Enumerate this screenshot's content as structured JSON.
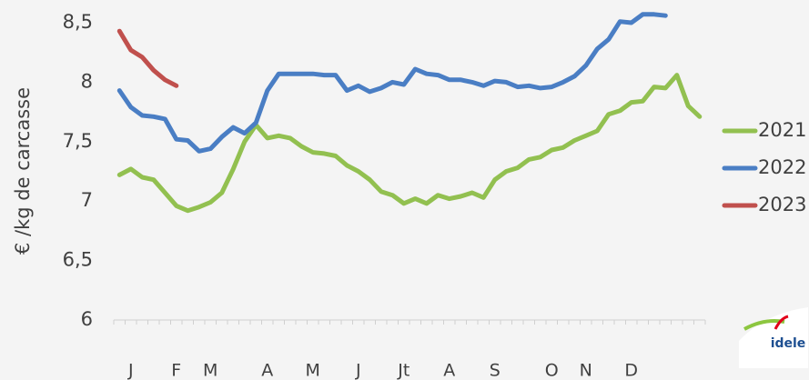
{
  "chart_data": {
    "type": "line",
    "y_label": "€ /kg de carcasse",
    "categories": [
      null,
      "J",
      null,
      null,
      null,
      "F",
      null,
      null,
      "M",
      null,
      null,
      null,
      null,
      "A",
      null,
      null,
      null,
      "M",
      null,
      null,
      null,
      "J",
      null,
      null,
      null,
      "Jt",
      null,
      null,
      null,
      "A",
      null,
      null,
      null,
      "S",
      null,
      null,
      null,
      null,
      "O",
      null,
      null,
      "N",
      null,
      null,
      null,
      "D",
      null,
      null,
      null,
      null,
      null,
      null
    ],
    "series": [
      {
        "name": "2021",
        "color": "#92c050",
        "values": [
          7.22,
          7.27,
          7.2,
          7.18,
          7.07,
          6.96,
          6.92,
          6.95,
          6.99,
          7.07,
          7.27,
          7.5,
          7.64,
          7.53,
          7.55,
          7.53,
          7.46,
          7.41,
          7.4,
          7.38,
          7.3,
          7.25,
          7.18,
          7.08,
          7.05,
          6.98,
          7.02,
          6.98,
          7.05,
          7.02,
          7.04,
          7.07,
          7.03,
          7.18,
          7.25,
          7.28,
          7.35,
          7.37,
          7.43,
          7.45,
          7.51,
          7.55,
          7.59,
          7.73,
          7.76,
          7.83,
          7.84,
          7.96,
          7.95,
          8.06,
          7.8,
          7.71
        ]
      },
      {
        "name": "2022",
        "color": "#4a7ec4",
        "values": [
          7.93,
          7.79,
          7.72,
          7.71,
          7.69,
          7.52,
          7.51,
          7.42,
          7.44,
          7.54,
          7.62,
          7.57,
          7.66,
          7.93,
          8.07,
          8.07,
          8.07,
          8.07,
          8.06,
          8.06,
          7.93,
          7.97,
          7.92,
          7.95,
          8.0,
          7.98,
          8.11,
          8.07,
          8.06,
          8.02,
          8.02,
          8.0,
          7.97,
          8.01,
          8.0,
          7.96,
          7.97,
          7.95,
          7.96,
          8.0,
          8.05,
          8.14,
          8.28,
          8.36,
          8.51,
          8.5,
          8.57,
          8.57,
          8.56,
          null,
          null,
          null
        ]
      },
      {
        "name": "2023",
        "color": "#c0504d",
        "values": [
          8.43,
          8.27,
          8.21,
          8.1,
          8.02,
          7.97,
          null,
          null,
          null,
          null,
          null,
          null,
          null,
          null,
          null,
          null,
          null,
          null,
          null,
          null,
          null,
          null,
          null,
          null,
          null,
          null,
          null,
          null,
          null,
          null,
          null,
          null,
          null,
          null,
          null,
          null,
          null,
          null,
          null,
          null,
          null,
          null,
          null,
          null,
          null,
          null,
          null,
          null,
          null,
          null,
          null,
          null
        ]
      }
    ],
    "ylim": [
      6,
      8.5
    ],
    "yticks": [
      6,
      {
        "value": 6.5,
        "label": "6,5"
      },
      7,
      {
        "value": 7.5,
        "label": "7,5"
      },
      8,
      {
        "value": 8.5,
        "label": "8,5"
      }
    ],
    "grid": false,
    "legend": "right"
  },
  "logo": "idele"
}
